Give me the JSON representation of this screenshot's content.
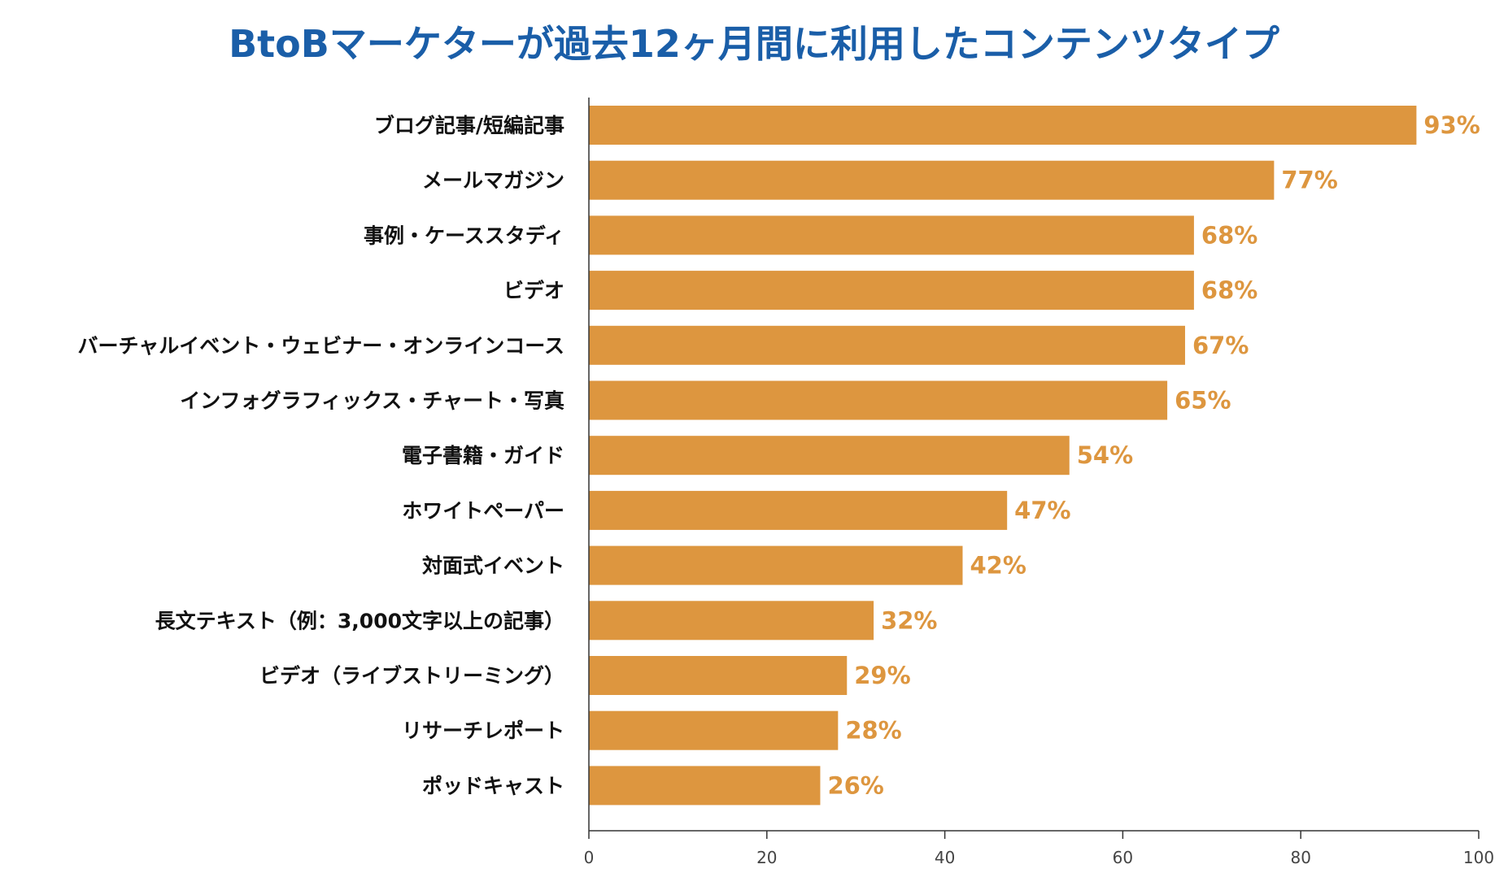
{
  "colors": {
    "title": "#1a5ea8",
    "bar": "#dd963f",
    "value_label": "#dd963f",
    "axis": "#333333"
  },
  "chart_data": {
    "type": "bar",
    "orientation": "horizontal",
    "title": "BtoBマーケターが過去12ヶ月間に利用したコンテンツタイプ",
    "categories": [
      "ブログ記事/短編記事",
      "メールマガジン",
      "事例・ケーススタディ",
      "ビデオ",
      "バーチャルイベント・ウェビナー・オンラインコース",
      "インフォグラフィックス・チャート・写真",
      "電子書籍・ガイド",
      "ホワイトペーパー",
      "対面式イベント",
      "長文テキスト（例：3,000文字以上の記事）",
      "ビデオ（ライブストリーミング）",
      "リサーチレポート",
      "ポッドキャスト"
    ],
    "values": [
      93,
      77,
      68,
      68,
      67,
      65,
      54,
      47,
      42,
      32,
      29,
      28,
      26
    ],
    "value_labels": [
      "93%",
      "77%",
      "68%",
      "68%",
      "67%",
      "65%",
      "54%",
      "47%",
      "42%",
      "32%",
      "29%",
      "28%",
      "26%"
    ],
    "xlim": [
      0,
      100
    ],
    "xticks": [
      0,
      20,
      40,
      60,
      80,
      100
    ],
    "xtick_labels": [
      "0",
      "20",
      "40",
      "60",
      "80",
      "100"
    ],
    "xlabel": "",
    "ylabel": "",
    "grid": false,
    "legend": "none"
  }
}
